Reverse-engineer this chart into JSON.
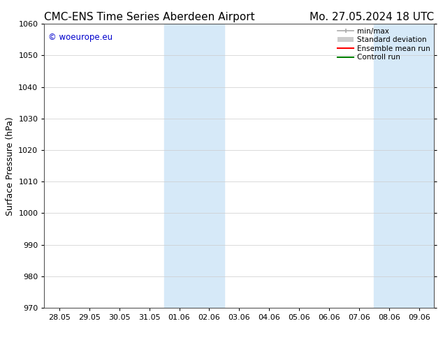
{
  "title_left": "CMC-ENS Time Series Aberdeen Airport",
  "title_right": "Mo. 27.05.2024 18 UTC",
  "ylabel": "Surface Pressure (hPa)",
  "ylim": [
    970,
    1060
  ],
  "yticks": [
    970,
    980,
    990,
    1000,
    1010,
    1020,
    1030,
    1040,
    1050,
    1060
  ],
  "xtick_labels": [
    "28.05",
    "29.05",
    "30.05",
    "31.05",
    "01.06",
    "02.06",
    "03.06",
    "04.06",
    "05.06",
    "06.06",
    "07.06",
    "08.06",
    "09.06"
  ],
  "shaded_regions": [
    {
      "start": 4,
      "end": 6
    },
    {
      "start": 11,
      "end": 13
    }
  ],
  "shaded_color": "#d6e9f8",
  "watermark_text": "© woeurope.eu",
  "watermark_color": "#0000cc",
  "legend_entries": [
    {
      "label": "min/max"
    },
    {
      "label": "Standard deviation"
    },
    {
      "label": "Ensemble mean run"
    },
    {
      "label": "Controll run"
    }
  ],
  "minmax_color": "#aaaaaa",
  "std_color": "#cccccc",
  "ens_color": "red",
  "ctrl_color": "green",
  "bg_color": "#ffffff",
  "grid_color": "#cccccc",
  "title_fontsize": 11,
  "tick_fontsize": 8,
  "ylabel_fontsize": 9,
  "legend_fontsize": 7.5
}
